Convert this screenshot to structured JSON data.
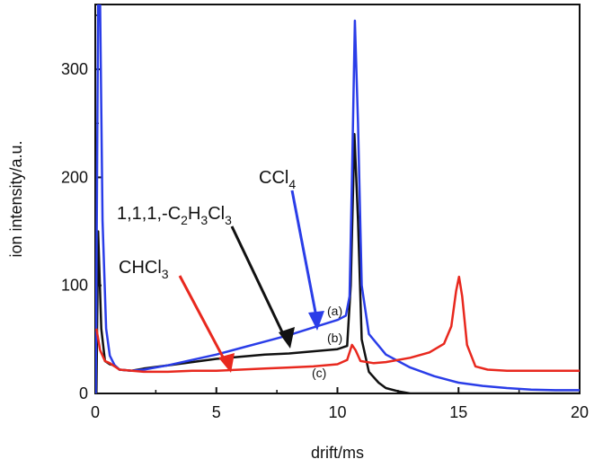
{
  "chart_data": {
    "type": "line",
    "xlabel": "drift/ms",
    "ylabel": "ion intensity/a.u.",
    "xlim": [
      0,
      20
    ],
    "ylim": [
      0,
      360
    ],
    "xticks": [
      0,
      5,
      10,
      15,
      20
    ],
    "yticks": [
      0,
      100,
      200,
      300
    ],
    "x_tick_labels": [
      "0",
      "5",
      "10",
      "15",
      "20"
    ],
    "y_tick_labels": [
      "0",
      "100",
      "200",
      "300"
    ],
    "grid": false,
    "series": [
      {
        "name": "CCl4",
        "color": "#2a3de8",
        "points": [
          [
            0.02,
            0
          ],
          [
            0.12,
            360
          ],
          [
            0.2,
            360
          ],
          [
            0.3,
            160
          ],
          [
            0.45,
            60
          ],
          [
            0.6,
            35
          ],
          [
            0.8,
            26
          ],
          [
            1.0,
            22
          ],
          [
            1.5,
            21
          ],
          [
            2.0,
            22
          ],
          [
            3.0,
            26
          ],
          [
            4.0,
            31
          ],
          [
            5.0,
            36
          ],
          [
            6.0,
            42
          ],
          [
            7.0,
            48
          ],
          [
            8.0,
            54
          ],
          [
            9.0,
            61
          ],
          [
            10.0,
            68
          ],
          [
            10.35,
            72
          ],
          [
            10.5,
            90
          ],
          [
            10.6,
            200
          ],
          [
            10.72,
            345
          ],
          [
            10.85,
            250
          ],
          [
            11.0,
            100
          ],
          [
            11.3,
            55
          ],
          [
            12.0,
            36
          ],
          [
            13.0,
            24
          ],
          [
            14.0,
            16
          ],
          [
            15.0,
            10
          ],
          [
            16.0,
            7
          ],
          [
            17.0,
            5
          ],
          [
            18.0,
            3.5
          ],
          [
            19.0,
            3
          ],
          [
            20.0,
            3
          ]
        ]
      },
      {
        "name": "1,1,1,-C2H3Cl3",
        "color": "#111111",
        "points": [
          [
            0.05,
            0
          ],
          [
            0.12,
            150
          ],
          [
            0.25,
            60
          ],
          [
            0.4,
            30
          ],
          [
            0.6,
            27
          ],
          [
            0.8,
            26
          ],
          [
            1.0,
            22
          ],
          [
            1.5,
            21
          ],
          [
            2.0,
            23
          ],
          [
            3.0,
            26
          ],
          [
            4.0,
            29
          ],
          [
            5.0,
            32
          ],
          [
            6.0,
            34
          ],
          [
            7.0,
            36
          ],
          [
            8.0,
            37
          ],
          [
            9.0,
            39
          ],
          [
            10.0,
            41
          ],
          [
            10.4,
            44
          ],
          [
            10.55,
            100
          ],
          [
            10.7,
            240
          ],
          [
            10.85,
            160
          ],
          [
            11.0,
            50
          ],
          [
            11.3,
            20
          ],
          [
            11.7,
            10
          ],
          [
            12.0,
            5
          ],
          [
            12.5,
            2
          ],
          [
            13.0,
            0
          ],
          [
            20.0,
            0
          ]
        ]
      },
      {
        "name": "CHCl3",
        "color": "#e8281e",
        "points": [
          [
            0.05,
            60
          ],
          [
            0.2,
            40
          ],
          [
            0.4,
            30
          ],
          [
            0.6,
            28
          ],
          [
            0.8,
            25
          ],
          [
            1.0,
            22
          ],
          [
            2.0,
            20
          ],
          [
            3.0,
            20
          ],
          [
            4.0,
            21
          ],
          [
            5.0,
            21
          ],
          [
            6.0,
            22
          ],
          [
            7.0,
            23
          ],
          [
            8.0,
            24
          ],
          [
            9.0,
            25
          ],
          [
            10.0,
            27
          ],
          [
            10.4,
            31
          ],
          [
            10.6,
            45
          ],
          [
            10.75,
            40
          ],
          [
            10.95,
            30
          ],
          [
            11.5,
            28
          ],
          [
            12.0,
            29
          ],
          [
            13.0,
            33
          ],
          [
            13.8,
            38
          ],
          [
            14.4,
            46
          ],
          [
            14.7,
            62
          ],
          [
            14.9,
            95
          ],
          [
            15.02,
            108
          ],
          [
            15.15,
            90
          ],
          [
            15.35,
            45
          ],
          [
            15.7,
            25
          ],
          [
            16.2,
            22
          ],
          [
            17.0,
            21
          ],
          [
            18.0,
            21
          ],
          [
            19.0,
            21
          ],
          [
            20.0,
            21
          ]
        ]
      }
    ],
    "labels": {
      "ccl4": {
        "main": "CCl",
        "sub": "4"
      },
      "tca": {
        "main": "1,1,1,-C",
        "sub1": "2",
        "mid1": "H",
        "sub2": "3",
        "mid2": "Cl",
        "sub3": "3"
      },
      "chcl3": {
        "main": "CHCl",
        "sub": "3"
      },
      "a": "(a)",
      "b": "(b)",
      "c": "(c)"
    }
  }
}
